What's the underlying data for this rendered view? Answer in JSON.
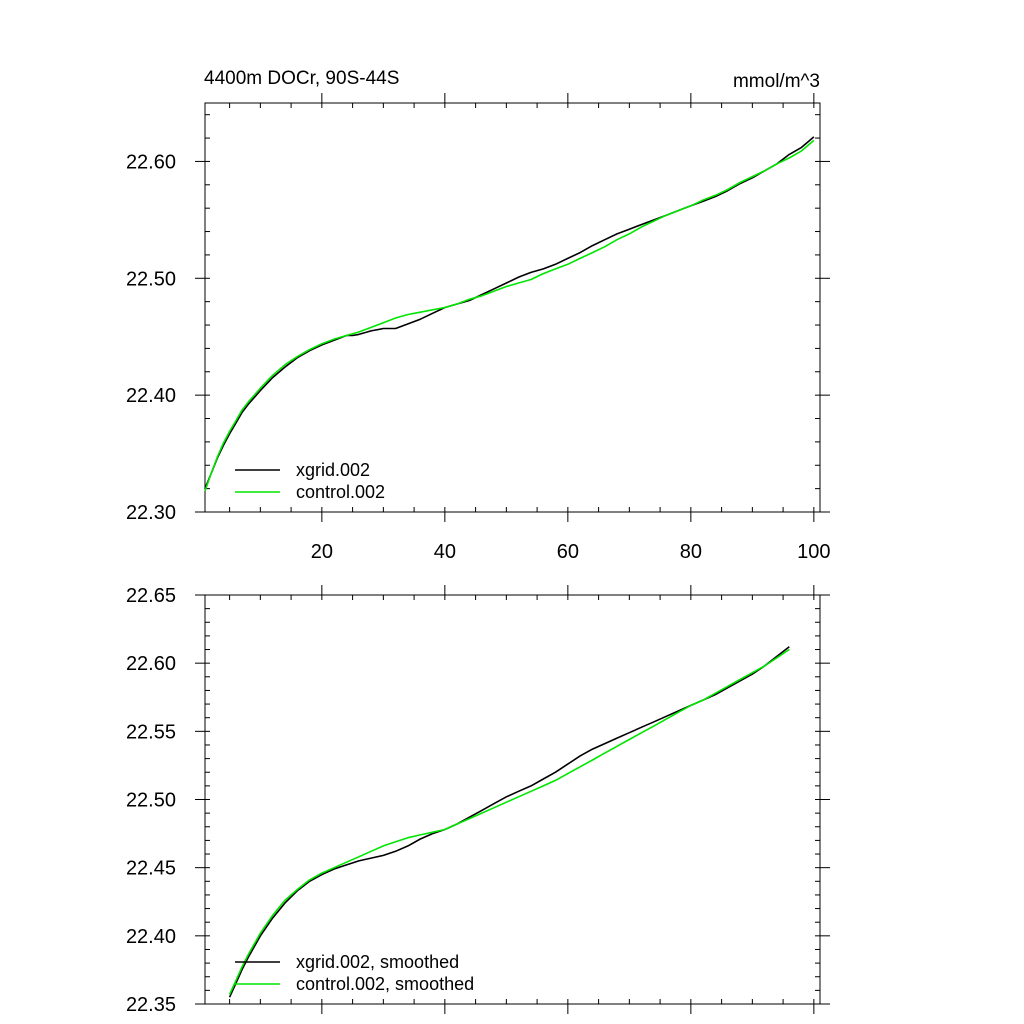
{
  "figure": {
    "title_left": "4400m DOCr, 90S-44S",
    "title_right": "mmol/m^3"
  },
  "chart_data": [
    {
      "type": "line",
      "title": "4400m DOCr, 90S-44S",
      "units": "mmol/m^3",
      "xlim": [
        1,
        101
      ],
      "ylim": [
        22.3,
        22.65
      ],
      "x_ticks": [
        20,
        40,
        60,
        80,
        100
      ],
      "x_tick_labels": [
        "20",
        "40",
        "60",
        "80",
        "100"
      ],
      "y_ticks": [
        22.3,
        22.4,
        22.5,
        22.6
      ],
      "y_tick_labels": [
        "22.30",
        "22.40",
        "22.50",
        "22.60"
      ],
      "grid": false,
      "legend_position": "bottom-left",
      "series": [
        {
          "name": "xgrid.002",
          "color": "#000000",
          "points": [
            [
              1,
              22.32
            ],
            [
              2,
              22.333
            ],
            [
              3,
              22.346
            ],
            [
              4,
              22.357
            ],
            [
              5,
              22.367
            ],
            [
              6,
              22.376
            ],
            [
              7,
              22.385
            ],
            [
              8,
              22.392
            ],
            [
              10,
              22.404
            ],
            [
              12,
              22.415
            ],
            [
              14,
              22.424
            ],
            [
              16,
              22.432
            ],
            [
              18,
              22.438
            ],
            [
              20,
              22.443
            ],
            [
              22,
              22.447
            ],
            [
              24,
              22.451
            ],
            [
              25,
              22.451
            ],
            [
              26,
              22.452
            ],
            [
              28,
              22.455
            ],
            [
              30,
              22.457
            ],
            [
              32,
              22.457
            ],
            [
              34,
              22.461
            ],
            [
              36,
              22.465
            ],
            [
              38,
              22.47
            ],
            [
              40,
              22.475
            ],
            [
              42,
              22.478
            ],
            [
              44,
              22.481
            ],
            [
              46,
              22.486
            ],
            [
              48,
              22.491
            ],
            [
              50,
              22.496
            ],
            [
              52,
              22.501
            ],
            [
              54,
              22.505
            ],
            [
              56,
              22.508
            ],
            [
              58,
              22.512
            ],
            [
              60,
              22.517
            ],
            [
              62,
              22.522
            ],
            [
              64,
              22.528
            ],
            [
              66,
              22.533
            ],
            [
              68,
              22.538
            ],
            [
              70,
              22.542
            ],
            [
              72,
              22.546
            ],
            [
              74,
              22.55
            ],
            [
              76,
              22.554
            ],
            [
              78,
              22.558
            ],
            [
              80,
              22.562
            ],
            [
              82,
              22.566
            ],
            [
              84,
              22.57
            ],
            [
              86,
              22.575
            ],
            [
              88,
              22.581
            ],
            [
              90,
              22.586
            ],
            [
              92,
              22.592
            ],
            [
              94,
              22.598
            ],
            [
              96,
              22.606
            ],
            [
              98,
              22.612
            ],
            [
              100,
              22.621
            ]
          ]
        },
        {
          "name": "control.002",
          "color": "#00e600",
          "points": [
            [
              1,
              22.318
            ],
            [
              2,
              22.333
            ],
            [
              3,
              22.347
            ],
            [
              4,
              22.359
            ],
            [
              5,
              22.369
            ],
            [
              6,
              22.378
            ],
            [
              7,
              22.387
            ],
            [
              8,
              22.394
            ],
            [
              10,
              22.406
            ],
            [
              12,
              22.417
            ],
            [
              14,
              22.426
            ],
            [
              16,
              22.433
            ],
            [
              18,
              22.439
            ],
            [
              20,
              22.444
            ],
            [
              22,
              22.448
            ],
            [
              24,
              22.451
            ],
            [
              26,
              22.454
            ],
            [
              28,
              22.458
            ],
            [
              30,
              22.462
            ],
            [
              32,
              22.466
            ],
            [
              34,
              22.469
            ],
            [
              36,
              22.471
            ],
            [
              38,
              22.473
            ],
            [
              40,
              22.475
            ],
            [
              42,
              22.478
            ],
            [
              44,
              22.482
            ],
            [
              46,
              22.485
            ],
            [
              48,
              22.489
            ],
            [
              50,
              22.493
            ],
            [
              52,
              22.496
            ],
            [
              54,
              22.499
            ],
            [
              56,
              22.504
            ],
            [
              58,
              22.508
            ],
            [
              60,
              22.512
            ],
            [
              62,
              22.517
            ],
            [
              64,
              22.522
            ],
            [
              66,
              22.527
            ],
            [
              68,
              22.533
            ],
            [
              70,
              22.538
            ],
            [
              72,
              22.544
            ],
            [
              74,
              22.549
            ],
            [
              76,
              22.554
            ],
            [
              78,
              22.558
            ],
            [
              80,
              22.562
            ],
            [
              82,
              22.567
            ],
            [
              84,
              22.571
            ],
            [
              86,
              22.576
            ],
            [
              88,
              22.582
            ],
            [
              90,
              22.587
            ],
            [
              92,
              22.592
            ],
            [
              94,
              22.598
            ],
            [
              96,
              22.603
            ],
            [
              98,
              22.609
            ],
            [
              100,
              22.618
            ]
          ]
        }
      ]
    },
    {
      "type": "line",
      "xlim": [
        1,
        101
      ],
      "ylim": [
        22.35,
        22.65
      ],
      "x_ticks": [
        20,
        40,
        60,
        80,
        100
      ],
      "x_tick_labels": [],
      "y_ticks": [
        22.35,
        22.4,
        22.45,
        22.5,
        22.55,
        22.6,
        22.65
      ],
      "y_tick_labels": [
        "22.35",
        "22.40",
        "22.45",
        "22.50",
        "22.55",
        "22.60",
        "22.65"
      ],
      "grid": false,
      "legend_position": "bottom-left",
      "series": [
        {
          "name": "xgrid.002, smoothed",
          "color": "#000000",
          "points": [
            [
              5,
              22.355
            ],
            [
              6,
              22.365
            ],
            [
              7,
              22.375
            ],
            [
              8,
              22.384
            ],
            [
              10,
              22.4
            ],
            [
              12,
              22.413
            ],
            [
              14,
              22.424
            ],
            [
              16,
              22.433
            ],
            [
              18,
              22.44
            ],
            [
              20,
              22.445
            ],
            [
              22,
              22.449
            ],
            [
              24,
              22.452
            ],
            [
              26,
              22.455
            ],
            [
              28,
              22.457
            ],
            [
              30,
              22.459
            ],
            [
              32,
              22.462
            ],
            [
              34,
              22.466
            ],
            [
              36,
              22.471
            ],
            [
              38,
              22.475
            ],
            [
              40,
              22.478
            ],
            [
              42,
              22.482
            ],
            [
              44,
              22.487
            ],
            [
              46,
              22.492
            ],
            [
              48,
              22.497
            ],
            [
              50,
              22.502
            ],
            [
              52,
              22.506
            ],
            [
              54,
              22.51
            ],
            [
              56,
              22.515
            ],
            [
              58,
              22.52
            ],
            [
              60,
              22.526
            ],
            [
              62,
              22.532
            ],
            [
              64,
              22.537
            ],
            [
              66,
              22.541
            ],
            [
              68,
              22.545
            ],
            [
              70,
              22.549
            ],
            [
              72,
              22.553
            ],
            [
              74,
              22.557
            ],
            [
              76,
              22.561
            ],
            [
              78,
              22.565
            ],
            [
              80,
              22.569
            ],
            [
              82,
              22.573
            ],
            [
              84,
              22.577
            ],
            [
              86,
              22.582
            ],
            [
              88,
              22.587
            ],
            [
              90,
              22.592
            ],
            [
              92,
              22.598
            ],
            [
              94,
              22.605
            ],
            [
              96,
              22.612
            ]
          ]
        },
        {
          "name": "control.002, smoothed",
          "color": "#00e600",
          "points": [
            [
              5,
              22.357
            ],
            [
              6,
              22.367
            ],
            [
              7,
              22.377
            ],
            [
              8,
              22.386
            ],
            [
              10,
              22.402
            ],
            [
              12,
              22.415
            ],
            [
              14,
              22.426
            ],
            [
              16,
              22.434
            ],
            [
              18,
              22.441
            ],
            [
              20,
              22.446
            ],
            [
              22,
              22.45
            ],
            [
              24,
              22.454
            ],
            [
              26,
              22.458
            ],
            [
              28,
              22.462
            ],
            [
              30,
              22.466
            ],
            [
              32,
              22.469
            ],
            [
              34,
              22.472
            ],
            [
              36,
              22.474
            ],
            [
              38,
              22.476
            ],
            [
              40,
              22.478
            ],
            [
              42,
              22.482
            ],
            [
              44,
              22.486
            ],
            [
              46,
              22.49
            ],
            [
              48,
              22.494
            ],
            [
              50,
              22.498
            ],
            [
              52,
              22.502
            ],
            [
              54,
              22.506
            ],
            [
              56,
              22.51
            ],
            [
              58,
              22.514
            ],
            [
              60,
              22.519
            ],
            [
              62,
              22.524
            ],
            [
              64,
              22.529
            ],
            [
              66,
              22.534
            ],
            [
              68,
              22.539
            ],
            [
              70,
              22.544
            ],
            [
              72,
              22.549
            ],
            [
              74,
              22.554
            ],
            [
              76,
              22.559
            ],
            [
              78,
              22.564
            ],
            [
              80,
              22.569
            ],
            [
              82,
              22.573
            ],
            [
              84,
              22.578
            ],
            [
              86,
              22.583
            ],
            [
              88,
              22.588
            ],
            [
              90,
              22.593
            ],
            [
              92,
              22.598
            ],
            [
              94,
              22.604
            ],
            [
              96,
              22.61
            ]
          ]
        }
      ]
    }
  ]
}
